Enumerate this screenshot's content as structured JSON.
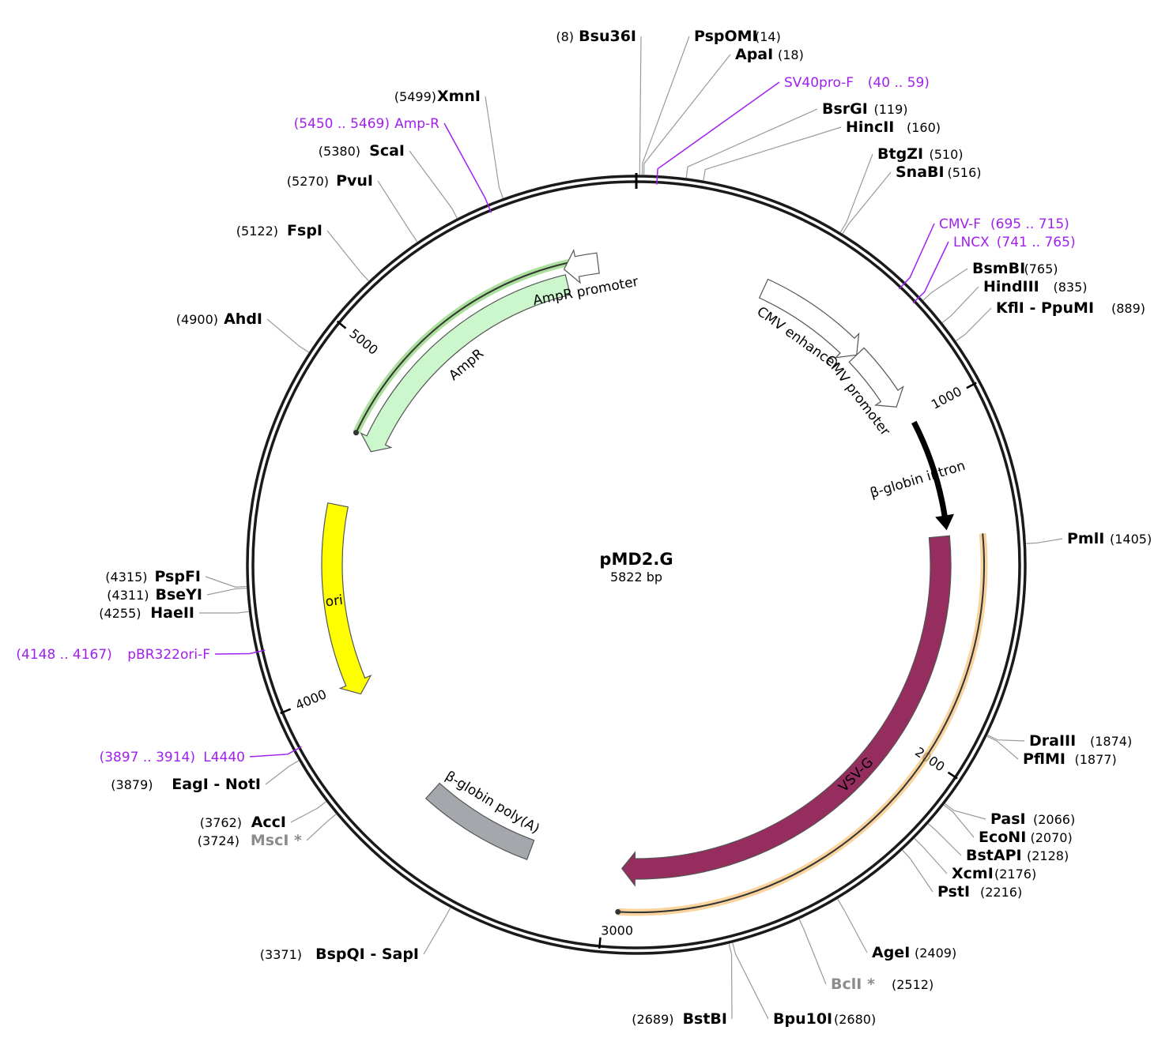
{
  "map": {
    "name": "pMD2.G",
    "length": "5822 bp",
    "total_bp": 5822
  },
  "ticks": [
    {
      "bp": 1000,
      "label": "1000"
    },
    {
      "bp": 2000,
      "label": "2000"
    },
    {
      "bp": 3000,
      "label": "3000"
    },
    {
      "bp": 4000,
      "label": "4000"
    },
    {
      "bp": 5000,
      "label": "5000"
    }
  ],
  "features": [
    {
      "id": "cmv-enhancer",
      "label": "CMV enhancer",
      "start": 400,
      "end": 750,
      "color": "#ffffff",
      "strand": 1
    },
    {
      "id": "cmv-promoter",
      "label": "CMV promoter",
      "start": 750,
      "end": 950,
      "color": "#ffffff",
      "strand": 1
    },
    {
      "id": "beta-globin-intron",
      "label": "β-globin intron",
      "start": 1017,
      "end": 1350,
      "color": "#000000",
      "strand": 1
    },
    {
      "id": "vsv-g",
      "label": "VSV-G",
      "start": 1370,
      "end": 2955,
      "color": "#952d5f",
      "strand": 1
    },
    {
      "id": "beta-globin-polya",
      "label": "β-globin poly(A)",
      "start": 3240,
      "end": 3590,
      "color": "#a4a8ad",
      "strand": 0
    },
    {
      "id": "ori",
      "label": "ori",
      "start": 3960,
      "end": 4550,
      "color": "#ffff00",
      "strand": -1
    },
    {
      "id": "ampr",
      "label": "AmpR",
      "start": 4740,
      "end": 5600,
      "color": "#ccf6cc",
      "strand": -1
    },
    {
      "id": "ampr-promoter",
      "label": "AmpR promoter",
      "start": 5600,
      "end": 5705,
      "color": "#ffffff",
      "strand": -1
    }
  ],
  "orfs": [
    {
      "id": "orf-ampr",
      "start": 4775,
      "end": 5635,
      "color": "#8fd67b"
    },
    {
      "id": "orf-vsvg",
      "start": 1372,
      "end": 2960,
      "color": "#f7c57d"
    }
  ],
  "enzymes": [
    {
      "name": "Bsu36I",
      "pos": "(8)",
      "site": 8,
      "side": "left"
    },
    {
      "name": "PspOMI",
      "pos": "(14)",
      "site": 14,
      "side": "right"
    },
    {
      "name": "ApaI",
      "pos": "(18)",
      "site": 18,
      "side": "right"
    },
    {
      "name": "BsrGI",
      "pos": "(119)",
      "site": 119,
      "side": "right"
    },
    {
      "name": "HincII",
      "pos": "(160)",
      "site": 160,
      "side": "right"
    },
    {
      "name": "BtgZI",
      "pos": "(510)",
      "site": 510,
      "side": "right"
    },
    {
      "name": "SnaBI",
      "pos": "(516)",
      "site": 516,
      "side": "right"
    },
    {
      "name": "BsmBI",
      "pos": "(765)",
      "site": 765,
      "side": "right"
    },
    {
      "name": "HindIII",
      "pos": "(835)",
      "site": 835,
      "side": "right"
    },
    {
      "name": "KflI - PpuMI",
      "pos": "(889)",
      "site": 889,
      "side": "right"
    },
    {
      "name": "PmlI",
      "pos": "(1405)",
      "site": 1405,
      "side": "right"
    },
    {
      "name": "DraIII",
      "pos": "(1874)",
      "site": 1874,
      "side": "right"
    },
    {
      "name": "PflMI",
      "pos": "(1877)",
      "site": 1877,
      "side": "right"
    },
    {
      "name": "PasI",
      "pos": "(2066)",
      "site": 2066,
      "side": "right"
    },
    {
      "name": "EcoNI",
      "pos": "(2070)",
      "site": 2070,
      "side": "right"
    },
    {
      "name": "BstAPI",
      "pos": "(2128)",
      "site": 2128,
      "side": "right"
    },
    {
      "name": "XcmI",
      "pos": "(2176)",
      "site": 2176,
      "side": "right"
    },
    {
      "name": "PstI",
      "pos": "(2216)",
      "site": 2216,
      "side": "right"
    },
    {
      "name": "AgeI",
      "pos": "(2409)",
      "site": 2409,
      "side": "right"
    },
    {
      "name": "BclI *",
      "pos": "(2512)",
      "site": 2512,
      "side": "right",
      "gray": true
    },
    {
      "name": "Bpu10I",
      "pos": "(2680)",
      "site": 2680,
      "side": "right"
    },
    {
      "name": "BstBI",
      "pos": "(2689)",
      "site": 2689,
      "side": "left"
    },
    {
      "name": "BspQI - SapI",
      "pos": "(3371)",
      "site": 3371,
      "side": "left"
    },
    {
      "name": "MscI *",
      "pos": "(3724)",
      "site": 3724,
      "side": "left",
      "gray": true
    },
    {
      "name": "AccI",
      "pos": "(3762)",
      "site": 3762,
      "side": "left"
    },
    {
      "name": "EagI - NotI",
      "pos": "(3879)",
      "site": 3879,
      "side": "left"
    },
    {
      "name": "HaeII",
      "pos": "(4255)",
      "site": 4255,
      "side": "left"
    },
    {
      "name": "BseYI",
      "pos": "(4311)",
      "site": 4311,
      "side": "left"
    },
    {
      "name": "PspFI",
      "pos": "(4315)",
      "site": 4315,
      "side": "left"
    },
    {
      "name": "AhdI",
      "pos": "(4900)",
      "site": 4900,
      "side": "left"
    },
    {
      "name": "FspI",
      "pos": "(5122)",
      "site": 5122,
      "side": "left"
    },
    {
      "name": "PvuI",
      "pos": "(5270)",
      "site": 5270,
      "side": "left"
    },
    {
      "name": "ScaI",
      "pos": "(5380)",
      "site": 5380,
      "side": "left"
    },
    {
      "name": "XmnI",
      "pos": "(5499)",
      "site": 5499,
      "side": "left"
    }
  ],
  "primers": [
    {
      "name": "SV40pro-F",
      "pos": "(40 .. 59)",
      "site": 50,
      "side": "right"
    },
    {
      "name": "CMV-F",
      "pos": "(695 .. 715)",
      "site": 705,
      "side": "right"
    },
    {
      "name": "LNCX",
      "pos": "(741 .. 765)",
      "site": 753,
      "side": "right"
    },
    {
      "name": "L4440",
      "pos": "(3897 .. 3914)",
      "site": 3905,
      "side": "left"
    },
    {
      "name": "pBR322ori-F",
      "pos": "(4148 .. 4167)",
      "site": 4157,
      "side": "left"
    },
    {
      "name": "Amp-R",
      "pos": "(5450 .. 5469)",
      "site": 5460,
      "side": "left"
    }
  ]
}
